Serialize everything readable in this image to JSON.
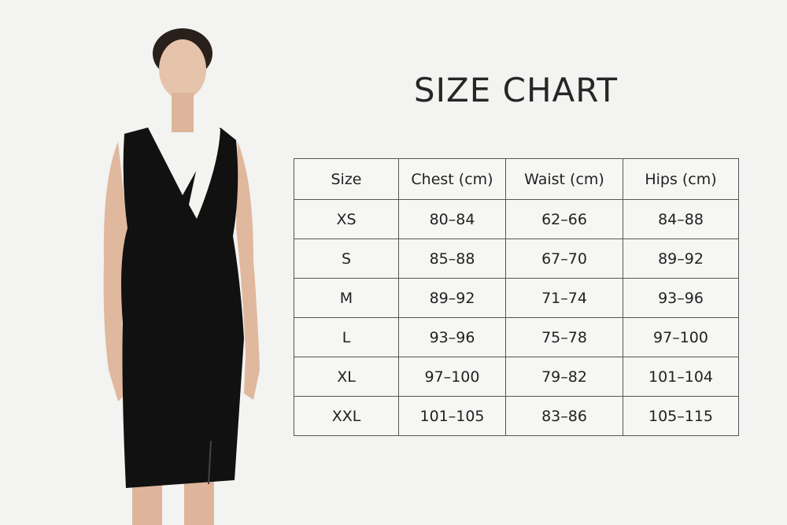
{
  "title": "SIZE CHART",
  "table": {
    "headers": [
      "Size",
      "Chest (cm)",
      "Waist (cm)",
      "Hips (cm)"
    ],
    "rows": [
      [
        "XS",
        "80–84",
        "62–66",
        "84–88"
      ],
      [
        "S",
        "85–88",
        "67–70",
        "89–92"
      ],
      [
        "M",
        "89–92",
        "71–74",
        "93–96"
      ],
      [
        "L",
        "93–96",
        "75–78",
        "97–100"
      ],
      [
        "XL",
        "97–100",
        "79–82",
        "101–104"
      ],
      [
        "XXL",
        "101–105",
        "83–86",
        "105–115"
      ]
    ]
  },
  "colors": {
    "background": "#f3f3f1",
    "dress": "#111111",
    "lapel": "#f4f4f0",
    "skin": "#e2bca4"
  }
}
